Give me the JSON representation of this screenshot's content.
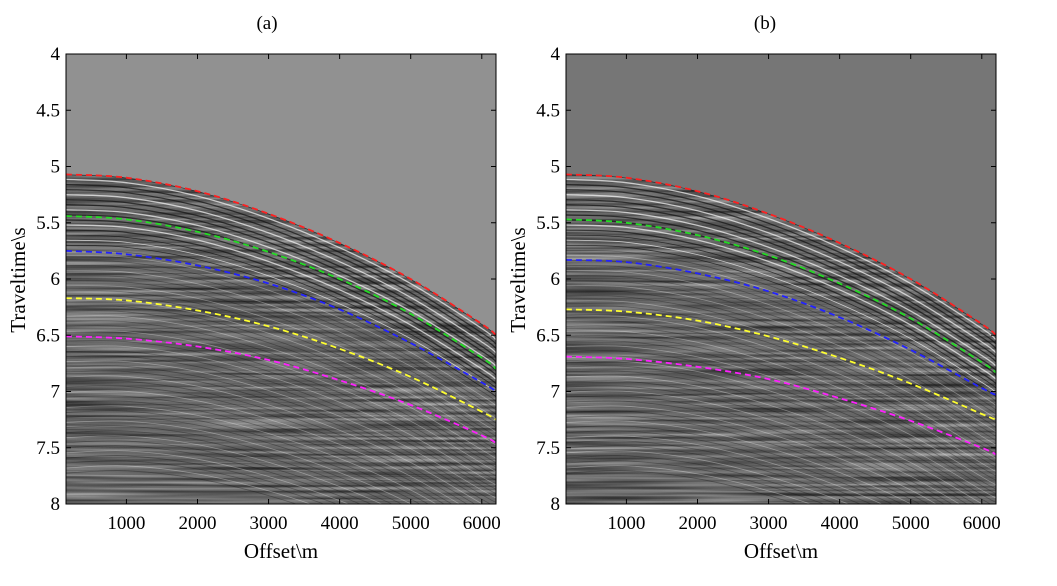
{
  "chart_data": [
    {
      "type": "line",
      "panel_label": "(a)",
      "xlabel": "Offset\\m",
      "ylabel": "Traveltime\\s",
      "xlim": [
        150,
        6200
      ],
      "ylim": [
        4,
        8
      ],
      "y_reversed": true,
      "x_ticks": [
        1000,
        2000,
        3000,
        4000,
        5000,
        6000
      ],
      "y_ticks": [
        4,
        4.5,
        5,
        5.5,
        6,
        6.5,
        7,
        7.5,
        8
      ],
      "y_tick_labels": [
        "4",
        "4.5",
        "5",
        "5.5",
        "6",
        "6.5",
        "7",
        "7.5",
        "8"
      ],
      "background_color": "#919191",
      "grid": false,
      "x": [
        150,
        1000,
        2000,
        3000,
        4000,
        5000,
        6000,
        6200
      ],
      "series": [
        {
          "color": "#ff2020",
          "values": [
            5.07,
            5.1,
            5.22,
            5.42,
            5.68,
            6.0,
            6.4,
            6.5
          ]
        },
        {
          "color": "#22dd22",
          "values": [
            5.44,
            5.47,
            5.58,
            5.76,
            6.0,
            6.31,
            6.7,
            6.8
          ]
        },
        {
          "color": "#2222ff",
          "values": [
            5.75,
            5.78,
            5.88,
            6.04,
            6.27,
            6.57,
            6.92,
            7.0
          ]
        },
        {
          "color": "#ffff30",
          "values": [
            6.17,
            6.19,
            6.28,
            6.42,
            6.62,
            6.87,
            7.18,
            7.25
          ]
        },
        {
          "color": "#ff20ff",
          "values": [
            6.51,
            6.53,
            6.6,
            6.72,
            6.9,
            7.12,
            7.39,
            7.46
          ]
        }
      ]
    },
    {
      "type": "line",
      "panel_label": "(b)",
      "xlabel": "Offset\\m",
      "ylabel": "Traveltime\\s",
      "xlim": [
        150,
        6200
      ],
      "ylim": [
        4,
        8
      ],
      "y_reversed": true,
      "x_ticks": [
        1000,
        2000,
        3000,
        4000,
        5000,
        6000
      ],
      "y_ticks": [
        4,
        4.5,
        5,
        5.5,
        6,
        6.5,
        7,
        7.5,
        8
      ],
      "y_tick_labels": [
        "4",
        "4.5",
        "5",
        "5.5",
        "6",
        "6.5",
        "7",
        "7.5",
        "8"
      ],
      "background_color": "#767676",
      "grid": false,
      "x": [
        150,
        1000,
        2000,
        3000,
        4000,
        5000,
        6000,
        6200
      ],
      "series": [
        {
          "color": "#ff2020",
          "values": [
            5.07,
            5.1,
            5.22,
            5.42,
            5.68,
            6.0,
            6.4,
            6.5
          ]
        },
        {
          "color": "#22dd22",
          "values": [
            5.47,
            5.5,
            5.61,
            5.79,
            6.04,
            6.35,
            6.74,
            6.83
          ]
        },
        {
          "color": "#2222ff",
          "values": [
            5.83,
            5.85,
            5.95,
            6.11,
            6.34,
            6.63,
            6.97,
            7.03
          ]
        },
        {
          "color": "#ffff30",
          "values": [
            6.27,
            6.29,
            6.37,
            6.51,
            6.7,
            6.93,
            7.2,
            7.25
          ]
        },
        {
          "color": "#ff20ff",
          "values": [
            6.69,
            6.71,
            6.78,
            6.89,
            7.06,
            7.26,
            7.5,
            7.56
          ]
        }
      ]
    }
  ]
}
